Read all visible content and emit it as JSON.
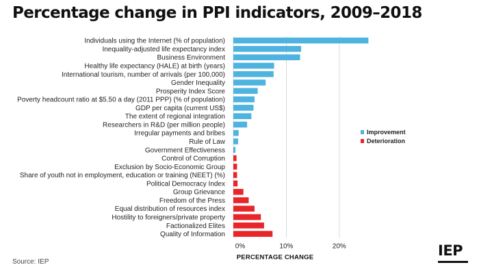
{
  "title": "Percentage change in PPI indicators, 2009–2018",
  "source": "Source: IEP",
  "logo": "IEP",
  "colors": {
    "improvement": "#4fb3df",
    "deterioration": "#e8262a",
    "grid": "#d0d0d0"
  },
  "chart_data": {
    "type": "bar",
    "orientation": "horizontal",
    "xlabel": "PERCENTAGE CHANGE",
    "xlim": [
      0,
      27
    ],
    "xticks": [
      0,
      10,
      20
    ],
    "xtick_labels": [
      "0%",
      "10%",
      "20%"
    ],
    "grid": true,
    "legend": {
      "placement": "right",
      "entries": [
        "Improvement",
        "Deterioration"
      ]
    },
    "categories": [
      "Individuals using the Internet (% of population)",
      "Inequality-adjusted life expectancy index",
      "Business Environment",
      "Healthy life expectancy (HALE) at birth (years)",
      "International tourism, number of arrivals (per 100,000)",
      "Gender Inequality",
      "Prosperity Index Score",
      "Poverty headcount ratio at $5.50 a day (2011 PPP) (% of population)",
      "GDP per capita (current US$)",
      "The extent of regional integration",
      "Researchers in R&D (per million people)",
      "Irregular payments and bribes",
      "Rule of Law",
      "Government Effectiveness",
      "Control of Corruption",
      "Exclusion by Socio-Economic Group",
      "Share of youth not in employment, education or training (NEET) (%)",
      "Political Democracy Index",
      "Group Grievance",
      "Freedom of the Press",
      "Equal distribution of resources index",
      "Hostility to foreigners/private property",
      "Factionalized Elites",
      "Quality of Information"
    ],
    "values": [
      25.5,
      12.8,
      12.6,
      7.7,
      7.6,
      6.1,
      4.6,
      4.0,
      3.8,
      3.4,
      2.6,
      1.0,
      0.9,
      0.4,
      0.6,
      0.7,
      0.7,
      0.8,
      1.9,
      2.9,
      4.0,
      5.2,
      5.8,
      7.4
    ],
    "series_type": [
      "Improvement",
      "Improvement",
      "Improvement",
      "Improvement",
      "Improvement",
      "Improvement",
      "Improvement",
      "Improvement",
      "Improvement",
      "Improvement",
      "Improvement",
      "Improvement",
      "Improvement",
      "Improvement",
      "Deterioration",
      "Deterioration",
      "Deterioration",
      "Deterioration",
      "Deterioration",
      "Deterioration",
      "Deterioration",
      "Deterioration",
      "Deterioration",
      "Deterioration"
    ]
  }
}
